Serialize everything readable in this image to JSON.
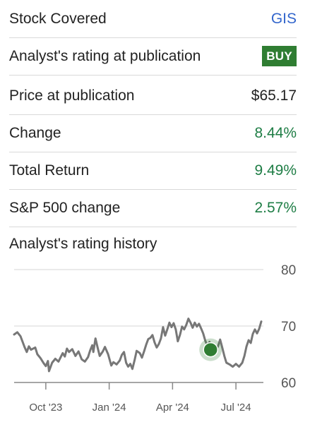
{
  "summary": {
    "rows": [
      {
        "label": "Stock Covered",
        "value": "GIS",
        "style": "blue"
      },
      {
        "label": "Analyst's rating at publication",
        "value": "BUY",
        "style": "badge"
      },
      {
        "label": "Price at publication",
        "value": "$65.17",
        "style": "plain"
      },
      {
        "label": "Change",
        "value": "8.44%",
        "style": "green"
      },
      {
        "label": "Total Return",
        "value": "9.49%",
        "style": "green"
      },
      {
        "label": "S&P 500 change",
        "value": "2.57%",
        "style": "green"
      }
    ]
  },
  "history": {
    "title": "Analyst's rating history"
  },
  "chart_data": {
    "type": "line",
    "y_ticks": [
      "80",
      "70",
      "60"
    ],
    "ylim": [
      60,
      80
    ],
    "x_ticks": [
      {
        "label": "Oct '23",
        "t": 1.0
      },
      {
        "label": "Jan '24",
        "t": 4.0
      },
      {
        "label": "Apr '24",
        "t": 7.0
      },
      {
        "label": "Jul '24",
        "t": 10.0
      }
    ],
    "xlim": [
      -0.5,
      11.3
    ],
    "line_color": "#777777",
    "marker_color": "#2f7d32",
    "marker": {
      "t": 8.8,
      "y": 65.8,
      "label": "BUY"
    },
    "series": [
      {
        "values": [
          [
            -0.5,
            68.5
          ],
          [
            -0.35,
            68.9
          ],
          [
            -0.2,
            68.2
          ],
          [
            0.0,
            66.2
          ],
          [
            0.1,
            65.4
          ],
          [
            0.2,
            66.4
          ],
          [
            0.3,
            65.8
          ],
          [
            0.5,
            66.2
          ],
          [
            0.6,
            65.0
          ],
          [
            0.75,
            64.3
          ],
          [
            0.9,
            63.4
          ],
          [
            1.0,
            62.9
          ],
          [
            1.1,
            63.8
          ],
          [
            1.15,
            62.0
          ],
          [
            1.3,
            63.5
          ],
          [
            1.45,
            64.2
          ],
          [
            1.6,
            63.7
          ],
          [
            1.8,
            65.2
          ],
          [
            1.9,
            64.6
          ],
          [
            2.0,
            66.0
          ],
          [
            2.1,
            65.4
          ],
          [
            2.25,
            65.9
          ],
          [
            2.4,
            64.7
          ],
          [
            2.55,
            65.5
          ],
          [
            2.7,
            64.1
          ],
          [
            2.85,
            63.7
          ],
          [
            3.0,
            64.5
          ],
          [
            3.1,
            65.7
          ],
          [
            3.2,
            66.6
          ],
          [
            3.25,
            65.4
          ],
          [
            3.35,
            67.8
          ],
          [
            3.45,
            66.2
          ],
          [
            3.55,
            64.7
          ],
          [
            3.7,
            65.5
          ],
          [
            3.8,
            66.3
          ],
          [
            3.95,
            65.0
          ],
          [
            4.1,
            63.0
          ],
          [
            4.2,
            63.6
          ],
          [
            4.35,
            63.2
          ],
          [
            4.5,
            63.9
          ],
          [
            4.6,
            64.9
          ],
          [
            4.7,
            65.4
          ],
          [
            4.8,
            63.5
          ],
          [
            4.9,
            62.8
          ],
          [
            5.0,
            63.3
          ],
          [
            5.1,
            62.4
          ],
          [
            5.2,
            63.9
          ],
          [
            5.3,
            65.6
          ],
          [
            5.45,
            65.2
          ],
          [
            5.55,
            64.4
          ],
          [
            5.65,
            65.5
          ],
          [
            5.75,
            66.7
          ],
          [
            5.85,
            67.7
          ],
          [
            5.95,
            67.9
          ],
          [
            6.05,
            68.4
          ],
          [
            6.15,
            67.1
          ],
          [
            6.25,
            66.2
          ],
          [
            6.35,
            66.8
          ],
          [
            6.45,
            67.8
          ],
          [
            6.55,
            69.8
          ],
          [
            6.65,
            68.3
          ],
          [
            6.75,
            69.4
          ],
          [
            6.85,
            70.6
          ],
          [
            6.95,
            69.8
          ],
          [
            7.05,
            70.5
          ],
          [
            7.15,
            69.4
          ],
          [
            7.25,
            67.3
          ],
          [
            7.35,
            68.4
          ],
          [
            7.45,
            69.9
          ],
          [
            7.55,
            69.4
          ],
          [
            7.65,
            70.2
          ],
          [
            7.75,
            71.3
          ],
          [
            7.85,
            70.6
          ],
          [
            7.95,
            69.7
          ],
          [
            8.05,
            70.6
          ],
          [
            8.15,
            69.9
          ],
          [
            8.25,
            70.4
          ],
          [
            8.35,
            69.6
          ],
          [
            8.45,
            68.7
          ],
          [
            8.55,
            67.4
          ],
          [
            8.65,
            66.5
          ],
          [
            8.75,
            67.2
          ],
          [
            8.85,
            66.1
          ],
          [
            8.95,
            66.7
          ],
          [
            9.05,
            65.7
          ],
          [
            9.15,
            66.4
          ],
          [
            9.25,
            67.6
          ],
          [
            9.35,
            66.2
          ],
          [
            9.45,
            64.7
          ],
          [
            9.55,
            63.5
          ],
          [
            9.7,
            63.2
          ],
          [
            9.85,
            62.8
          ],
          [
            10.0,
            63.3
          ],
          [
            10.15,
            62.8
          ],
          [
            10.3,
            63.5
          ],
          [
            10.4,
            64.7
          ],
          [
            10.5,
            66.4
          ],
          [
            10.6,
            67.5
          ],
          [
            10.7,
            67.0
          ],
          [
            10.8,
            68.6
          ],
          [
            10.9,
            69.4
          ],
          [
            11.0,
            68.7
          ],
          [
            11.1,
            69.5
          ],
          [
            11.2,
            70.8
          ]
        ]
      }
    ]
  }
}
